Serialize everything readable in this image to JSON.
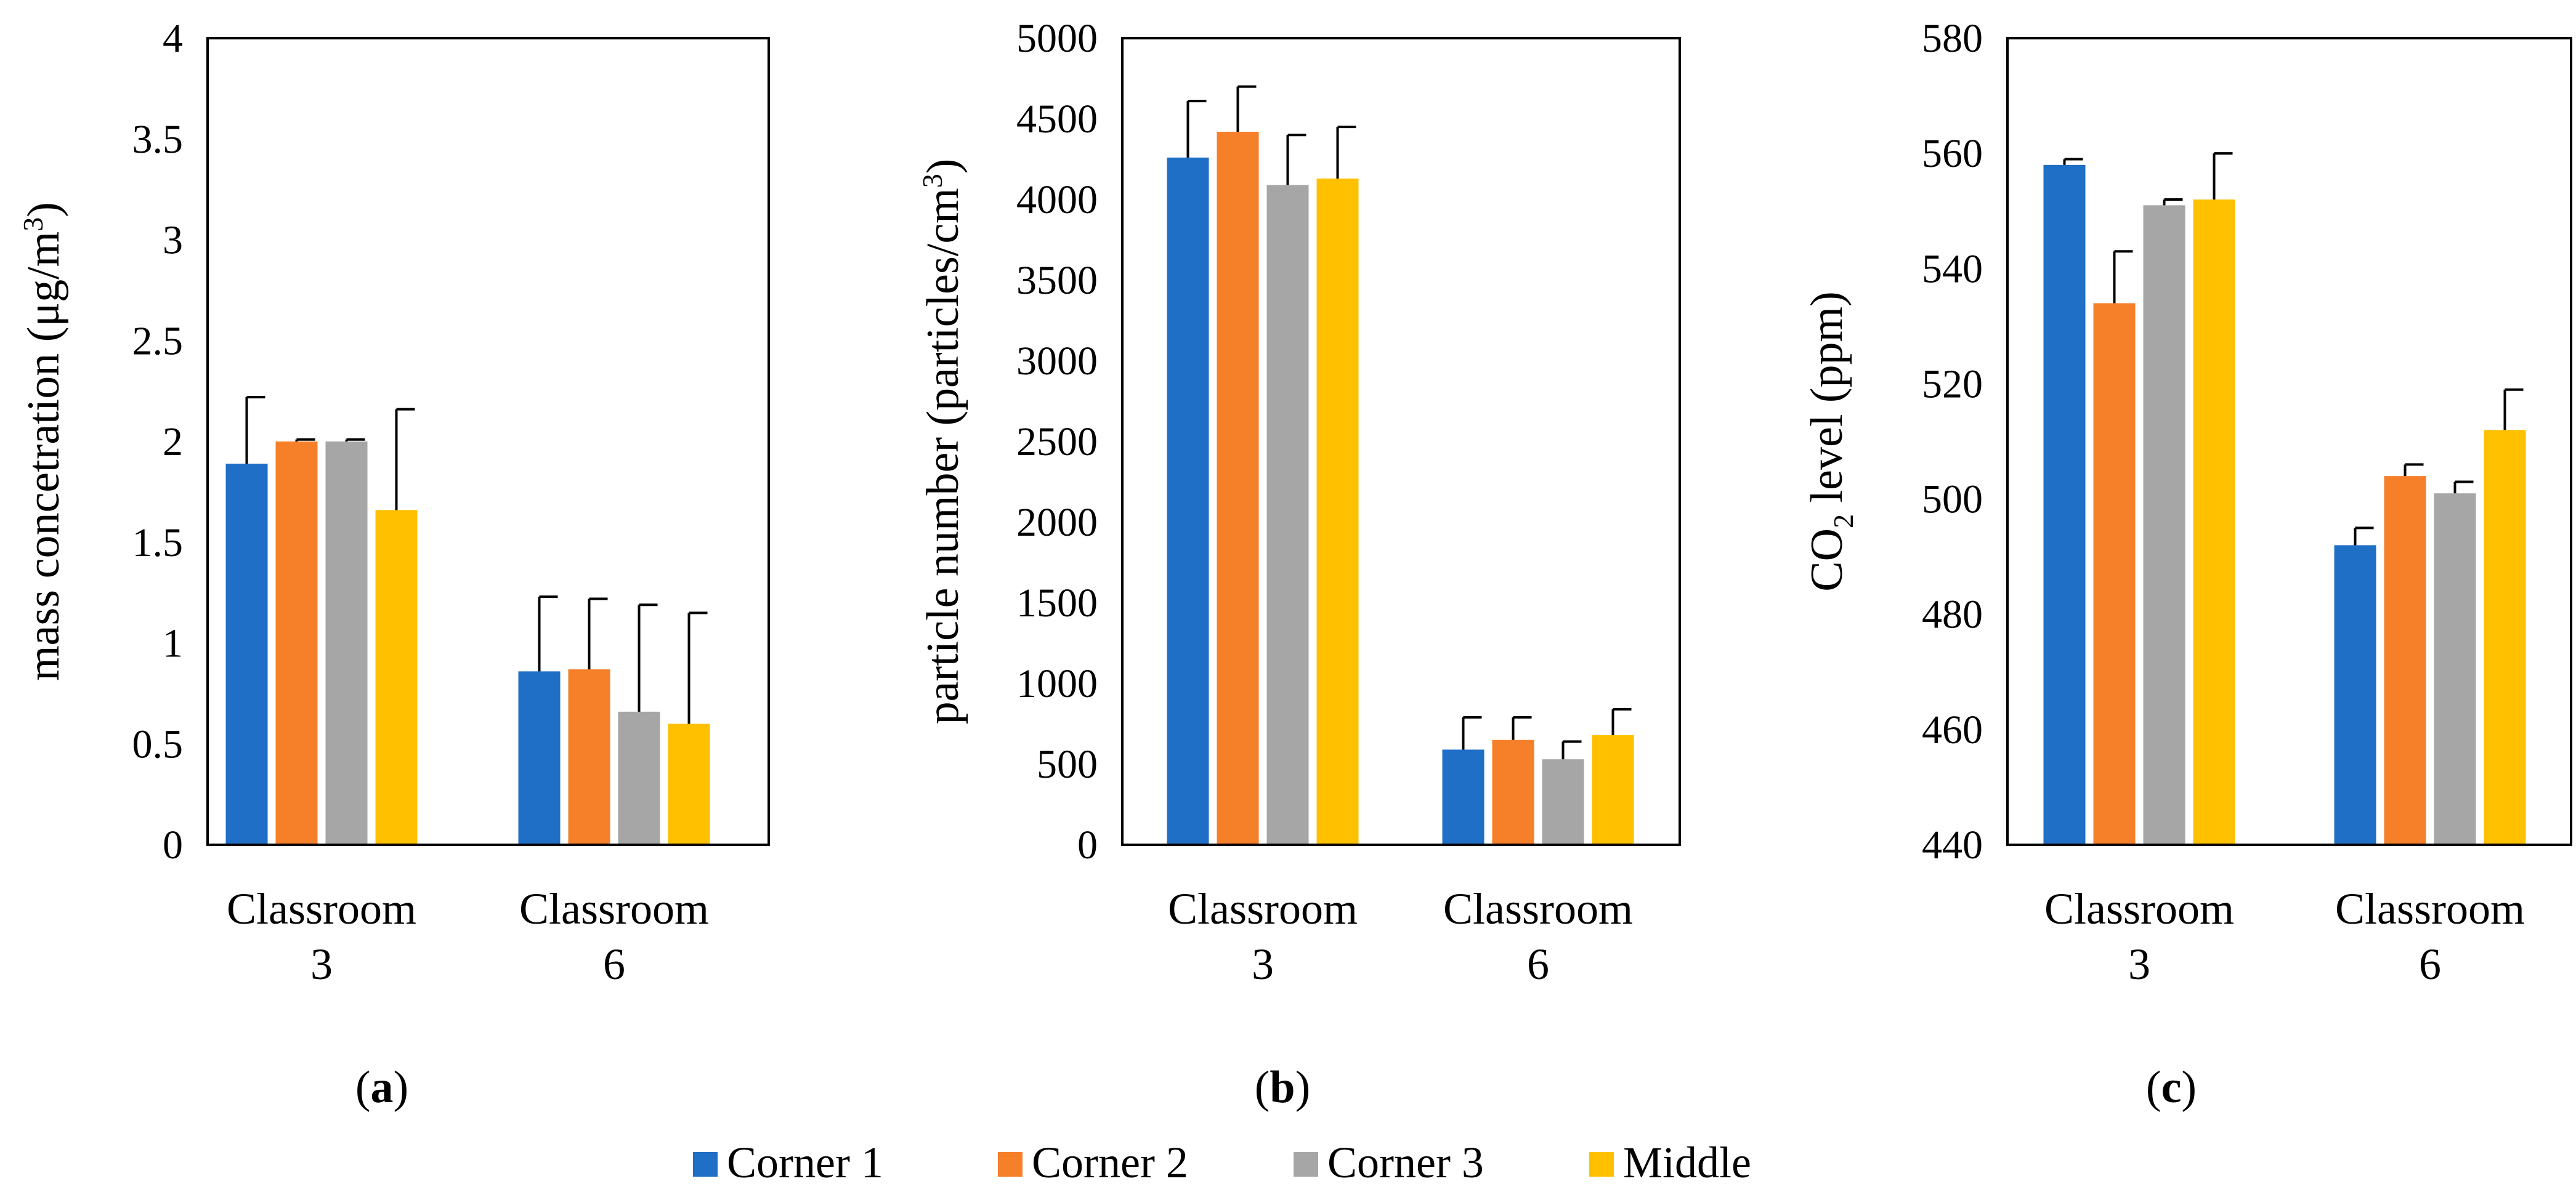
{
  "colors": {
    "corner1": "#1f6fc6",
    "corner2": "#f67f2a",
    "corner3": "#a6a6a6",
    "middle": "#ffc000",
    "axis": "#000000"
  },
  "legend": [
    {
      "key": "corner1",
      "label": "Corner 1"
    },
    {
      "key": "corner2",
      "label": "Corner 2"
    },
    {
      "key": "corner3",
      "label": "Corner 3"
    },
    {
      "key": "middle",
      "label": "Middle"
    }
  ],
  "chart_data": [
    {
      "id": "a",
      "type": "bar",
      "panel_label": "a",
      "ylabel": {
        "text": "mass concetration (μg/m",
        "sup": "3",
        "suffix": ")"
      },
      "ylim": [
        0,
        4
      ],
      "yticks": [
        {
          "value": 0,
          "label": "0"
        },
        {
          "value": 0.5,
          "label": "0.5"
        },
        {
          "value": 1,
          "label": "1"
        },
        {
          "value": 1.5,
          "label": "1.5"
        },
        {
          "value": 2,
          "label": "2"
        },
        {
          "value": 2.5,
          "label": "2.5"
        },
        {
          "value": 3,
          "label": "3"
        },
        {
          "value": 3.5,
          "label": "3.5"
        },
        {
          "value": 4,
          "label": "4"
        }
      ],
      "categories": [
        {
          "line1": "Classroom",
          "line2": "3"
        },
        {
          "line1": "Classroom",
          "line2": "6"
        }
      ],
      "series": [
        {
          "name": "Corner 1",
          "key": "corner1",
          "values": [
            1.89,
            0.86
          ],
          "errors": [
            0.33,
            0.37
          ]
        },
        {
          "name": "Corner 2",
          "key": "corner2",
          "values": [
            2.0,
            0.87
          ],
          "errors": [
            0.01,
            0.35
          ]
        },
        {
          "name": "Corner 3",
          "key": "corner3",
          "values": [
            2.0,
            0.66
          ],
          "errors": [
            0.01,
            0.53
          ]
        },
        {
          "name": "Middle",
          "key": "middle",
          "values": [
            1.66,
            0.6
          ],
          "errors": [
            0.5,
            0.55
          ]
        }
      ]
    },
    {
      "id": "b",
      "type": "bar",
      "panel_label": "b",
      "ylabel": {
        "text": "particle number (particles/cm",
        "sup": "3",
        "suffix": ")"
      },
      "ylim": [
        0,
        5000
      ],
      "yticks": [
        {
          "value": 0,
          "label": "0"
        },
        {
          "value": 500,
          "label": "500"
        },
        {
          "value": 1000,
          "label": "1000"
        },
        {
          "value": 1500,
          "label": "1500"
        },
        {
          "value": 2000,
          "label": "2000"
        },
        {
          "value": 2500,
          "label": "2500"
        },
        {
          "value": 3000,
          "label": "3000"
        },
        {
          "value": 3500,
          "label": "3500"
        },
        {
          "value": 4000,
          "label": "4000"
        },
        {
          "value": 4500,
          "label": "4500"
        },
        {
          "value": 5000,
          "label": "5000"
        }
      ],
      "categories": [
        {
          "line1": "Classroom",
          "line2": "3"
        },
        {
          "line1": "Classroom",
          "line2": "6"
        }
      ],
      "series": [
        {
          "name": "Corner 1",
          "key": "corner1",
          "values": [
            4260,
            590
          ],
          "errors": [
            350,
            200
          ]
        },
        {
          "name": "Corner 2",
          "key": "corner2",
          "values": [
            4420,
            650
          ],
          "errors": [
            280,
            140
          ]
        },
        {
          "name": "Corner 3",
          "key": "corner3",
          "values": [
            4090,
            530
          ],
          "errors": [
            310,
            110
          ]
        },
        {
          "name": "Middle",
          "key": "middle",
          "values": [
            4130,
            680
          ],
          "errors": [
            320,
            160
          ]
        }
      ]
    },
    {
      "id": "c",
      "type": "bar",
      "panel_label": "c",
      "ylabel": {
        "text": "CO",
        "sub": "2",
        "suffix": " level (ppm)"
      },
      "ylim": [
        440,
        580
      ],
      "yticks": [
        {
          "value": 440,
          "label": "440"
        },
        {
          "value": 460,
          "label": "460"
        },
        {
          "value": 480,
          "label": "480"
        },
        {
          "value": 500,
          "label": "500"
        },
        {
          "value": 520,
          "label": "520"
        },
        {
          "value": 540,
          "label": "540"
        },
        {
          "value": 560,
          "label": "560"
        },
        {
          "value": 580,
          "label": "580"
        }
      ],
      "categories": [
        {
          "line1": "Classroom",
          "line2": "3"
        },
        {
          "line1": "Classroom",
          "line2": "6"
        }
      ],
      "series": [
        {
          "name": "Corner 1",
          "key": "corner1",
          "values": [
            558,
            492
          ],
          "errors": [
            1,
            3
          ]
        },
        {
          "name": "Corner 2",
          "key": "corner2",
          "values": [
            534,
            504
          ],
          "errors": [
            9,
            2
          ]
        },
        {
          "name": "Corner 3",
          "key": "corner3",
          "values": [
            551,
            501
          ],
          "errors": [
            1,
            2
          ]
        },
        {
          "name": "Middle",
          "key": "middle",
          "values": [
            552,
            512
          ],
          "errors": [
            8,
            7
          ]
        }
      ]
    }
  ]
}
